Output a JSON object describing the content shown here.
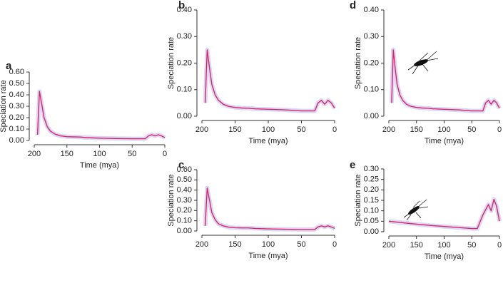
{
  "chart_data": [
    {
      "type": "line",
      "label": "a",
      "xlabel": "Time (mya)",
      "ylabel": "Speciation rate",
      "color": "#e0245e",
      "x": [
        195,
        192,
        188,
        185,
        180,
        175,
        168,
        160,
        150,
        140,
        130,
        120,
        100,
        75,
        50,
        30,
        25,
        20,
        15,
        10,
        5,
        0
      ],
      "values": [
        0.05,
        0.43,
        0.3,
        0.2,
        0.12,
        0.08,
        0.055,
        0.04,
        0.033,
        0.031,
        0.03,
        0.025,
        0.02,
        0.017,
        0.015,
        0.015,
        0.04,
        0.05,
        0.04,
        0.05,
        0.04,
        0.025
      ],
      "xlim": [
        200,
        0
      ],
      "xticks": [
        200,
        150,
        100,
        50,
        0
      ],
      "ylim": [
        0,
        0.6
      ],
      "yticks": [
        {
          "value": 0,
          "label": "0.00"
        },
        {
          "value": 0.1,
          "label": "0.10"
        },
        {
          "value": 0.2,
          "label": "0.20"
        },
        {
          "value": 0.3,
          "label": "0.30"
        },
        {
          "value": 0.4,
          "label": "0.40"
        },
        {
          "value": 0.5,
          "label": "0.50"
        },
        {
          "value": 0.6,
          "label": "0.60"
        }
      ]
    },
    {
      "type": "line",
      "label": "b",
      "xlabel": "Time (mya)",
      "ylabel": "Speciation rate",
      "color": "#e0245e",
      "x": [
        195,
        192,
        188,
        185,
        180,
        175,
        168,
        160,
        150,
        140,
        130,
        120,
        100,
        75,
        50,
        30,
        25,
        20,
        15,
        10,
        5,
        0
      ],
      "values": [
        0.05,
        0.25,
        0.17,
        0.12,
        0.08,
        0.06,
        0.045,
        0.037,
        0.033,
        0.031,
        0.03,
        0.028,
        0.026,
        0.024,
        0.02,
        0.02,
        0.05,
        0.06,
        0.045,
        0.06,
        0.05,
        0.03
      ],
      "xlim": [
        200,
        0
      ],
      "xticks": [
        200,
        150,
        100,
        50,
        0
      ],
      "ylim": [
        0,
        0.4
      ],
      "yticks": [
        {
          "value": 0,
          "label": "0.00"
        },
        {
          "value": 0.1,
          "label": "0.10"
        },
        {
          "value": 0.2,
          "label": "0.20"
        },
        {
          "value": 0.3,
          "label": "0.30"
        },
        {
          "value": 0.4,
          "label": "0.40"
        }
      ]
    },
    {
      "type": "line",
      "label": "c",
      "xlabel": "Time (mya)",
      "ylabel": "Speciation rate",
      "color": "#e0245e",
      "x": [
        195,
        192,
        188,
        185,
        180,
        175,
        168,
        160,
        150,
        140,
        130,
        120,
        100,
        75,
        50,
        30,
        25,
        20,
        15,
        10,
        5,
        0
      ],
      "values": [
        0.05,
        0.42,
        0.28,
        0.18,
        0.11,
        0.07,
        0.05,
        0.038,
        0.032,
        0.03,
        0.03,
        0.025,
        0.02,
        0.017,
        0.015,
        0.015,
        0.04,
        0.05,
        0.04,
        0.05,
        0.04,
        0.025
      ],
      "xlim": [
        200,
        0
      ],
      "xticks": [
        200,
        150,
        100,
        50,
        0
      ],
      "ylim": [
        0,
        0.6
      ],
      "yticks": [
        {
          "value": 0,
          "label": "0.00"
        },
        {
          "value": 0.1,
          "label": "0.10"
        },
        {
          "value": 0.2,
          "label": "0.20"
        },
        {
          "value": 0.3,
          "label": "0.30"
        },
        {
          "value": 0.4,
          "label": "0.40"
        },
        {
          "value": 0.5,
          "label": "0.50"
        },
        {
          "value": 0.6,
          "label": "0.60"
        }
      ]
    },
    {
      "type": "line",
      "label": "d",
      "xlabel": "Time (mya)",
      "ylabel": "Speciation rate",
      "color": "#e0245e",
      "x": [
        195,
        192,
        188,
        185,
        180,
        175,
        168,
        160,
        150,
        140,
        130,
        120,
        100,
        75,
        50,
        30,
        25,
        20,
        15,
        10,
        5,
        0
      ],
      "values": [
        0.05,
        0.25,
        0.17,
        0.12,
        0.08,
        0.06,
        0.045,
        0.037,
        0.033,
        0.031,
        0.03,
        0.028,
        0.026,
        0.024,
        0.02,
        0.02,
        0.05,
        0.06,
        0.045,
        0.06,
        0.05,
        0.03
      ],
      "xlim": [
        200,
        0
      ],
      "xticks": [
        200,
        150,
        100,
        50,
        0
      ],
      "ylim": [
        0,
        0.4
      ],
      "yticks": [
        {
          "value": 0,
          "label": "0.00"
        },
        {
          "value": 0.1,
          "label": "0.10"
        },
        {
          "value": 0.2,
          "label": "0.20"
        },
        {
          "value": 0.3,
          "label": "0.30"
        },
        {
          "value": 0.4,
          "label": "0.40"
        }
      ]
    },
    {
      "type": "line",
      "label": "e",
      "xlabel": "Time (mya)",
      "ylabel": "Speciation rate",
      "color": "#e0245e",
      "x": [
        200,
        175,
        150,
        125,
        100,
        75,
        50,
        40,
        30,
        20,
        15,
        10,
        5,
        0
      ],
      "values": [
        0.05,
        0.043,
        0.036,
        0.03,
        0.025,
        0.02,
        0.015,
        0.015,
        0.08,
        0.13,
        0.1,
        0.155,
        0.12,
        0.05
      ],
      "xlim": [
        200,
        0
      ],
      "xticks": [
        200,
        150,
        100,
        50,
        0
      ],
      "ylim": [
        0,
        0.3
      ],
      "yticks": [
        {
          "value": 0,
          "label": "0.00"
        },
        {
          "value": 0.05,
          "label": "0.05"
        },
        {
          "value": 0.1,
          "label": "0.10"
        },
        {
          "value": 0.15,
          "label": "0.15"
        },
        {
          "value": 0.2,
          "label": "0.20"
        },
        {
          "value": 0.25,
          "label": "0.25"
        },
        {
          "value": 0.3,
          "label": "0.30"
        }
      ]
    }
  ]
}
